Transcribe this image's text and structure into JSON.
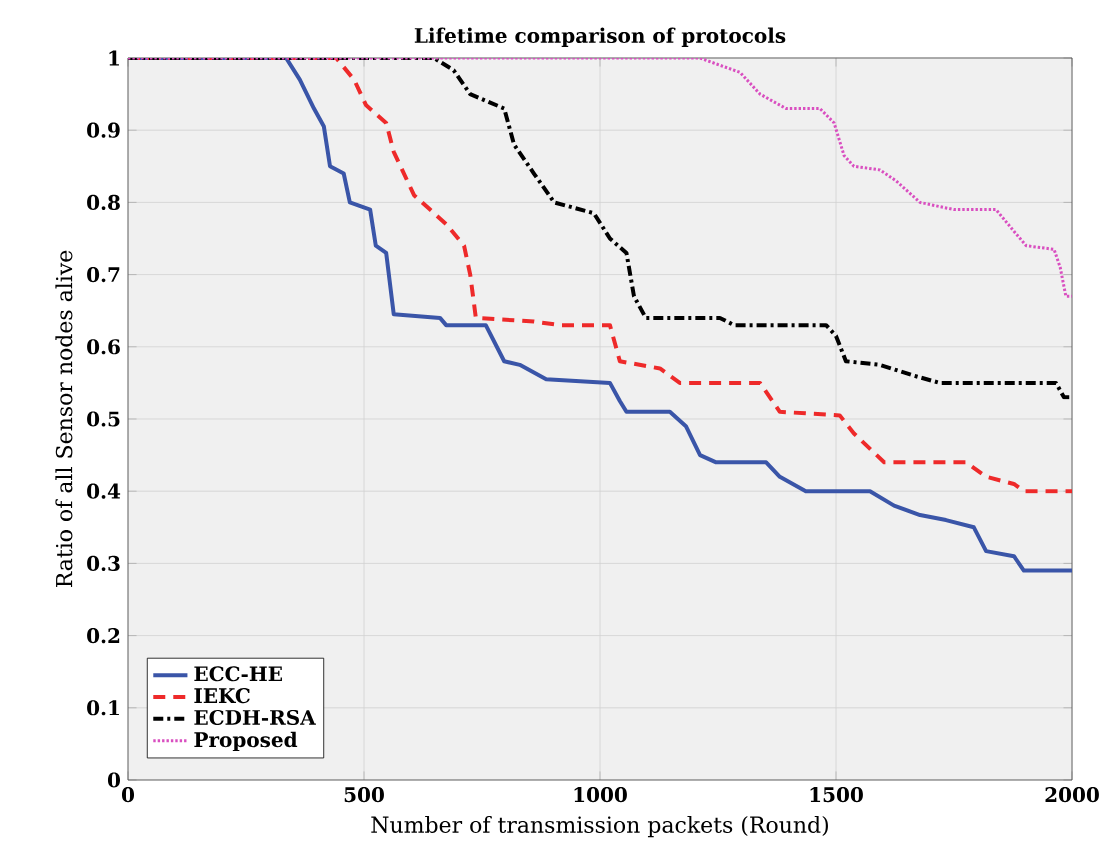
{
  "chart_data": {
    "type": "line",
    "title": "Lifetime comparison of protocols",
    "xlabel": "Number of transmission packets (Round)",
    "ylabel": "Ratio of all Sensor nodes alive",
    "xlim": [
      0,
      2000
    ],
    "ylim": [
      0,
      1
    ],
    "xticks": [
      0,
      500,
      1000,
      1500,
      2000
    ],
    "yticks": [
      0,
      0.1,
      0.2,
      0.3,
      0.4,
      0.5,
      0.6,
      0.7,
      0.8,
      0.9,
      1
    ],
    "grid": true,
    "legend": "bottom left",
    "marker": "none",
    "series": [
      {
        "name": "ECC-HE",
        "color": "#3a55a8",
        "line_style": "solid",
        "x": [
          0,
          335,
          364,
          394,
          415,
          428,
          457,
          470,
          513,
          525,
          547,
          563,
          661,
          674,
          758,
          797,
          830,
          886,
          1021,
          1042,
          1056,
          1148,
          1182,
          1212,
          1246,
          1352,
          1381,
          1436,
          1572,
          1623,
          1678,
          1733,
          1792,
          1818,
          1877,
          1898,
          2000
        ],
        "values": [
          1,
          1,
          0.97,
          0.93,
          0.905,
          0.85,
          0.84,
          0.8,
          0.79,
          0.74,
          0.73,
          0.645,
          0.64,
          0.63,
          0.63,
          0.58,
          0.575,
          0.555,
          0.55,
          0.525,
          0.51,
          0.51,
          0.49,
          0.45,
          0.44,
          0.44,
          0.42,
          0.4,
          0.4,
          0.38,
          0.367,
          0.36,
          0.35,
          0.317,
          0.31,
          0.29,
          0.29
        ]
      },
      {
        "name": "IEKC",
        "color": "#ee2a2a",
        "line_style": "dashed",
        "x": [
          0,
          441,
          479,
          504,
          547,
          563,
          606,
          640,
          674,
          712,
          725,
          737,
          860,
          915,
          1021,
          1042,
          1127,
          1169,
          1339,
          1381,
          1508,
          1538,
          1602,
          1775,
          1818,
          1877,
          1898,
          2000
        ],
        "values": [
          1,
          1,
          0.97,
          0.935,
          0.91,
          0.87,
          0.81,
          0.79,
          0.77,
          0.74,
          0.7,
          0.64,
          0.635,
          0.63,
          0.63,
          0.58,
          0.57,
          0.55,
          0.55,
          0.51,
          0.505,
          0.48,
          0.44,
          0.44,
          0.42,
          0.41,
          0.4,
          0.4
        ]
      },
      {
        "name": "ECDH-RSA",
        "color": "#000000",
        "line_style": "dashdot",
        "x": [
          0,
          648,
          690,
          725,
          797,
          818,
          860,
          903,
          987,
          1021,
          1056,
          1072,
          1097,
          1254,
          1284,
          1479,
          1500,
          1521,
          1593,
          1665,
          1720,
          1966,
          1983,
          2000
        ],
        "values": [
          1,
          1,
          0.983,
          0.95,
          0.93,
          0.88,
          0.84,
          0.8,
          0.785,
          0.75,
          0.73,
          0.67,
          0.64,
          0.64,
          0.63,
          0.63,
          0.615,
          0.58,
          0.575,
          0.56,
          0.55,
          0.55,
          0.53,
          0.53
        ]
      },
      {
        "name": "Proposed",
        "color": "#d94fc0",
        "line_style": "dotted",
        "x": [
          0,
          1212,
          1254,
          1297,
          1339,
          1394,
          1466,
          1496,
          1517,
          1538,
          1593,
          1627,
          1678,
          1750,
          1839,
          1877,
          1903,
          1962,
          1975,
          1987,
          2000
        ],
        "values": [
          1,
          1,
          0.99,
          0.98,
          0.95,
          0.93,
          0.93,
          0.91,
          0.865,
          0.85,
          0.845,
          0.83,
          0.8,
          0.79,
          0.79,
          0.76,
          0.74,
          0.735,
          0.71,
          0.67,
          0.67
        ]
      }
    ]
  }
}
